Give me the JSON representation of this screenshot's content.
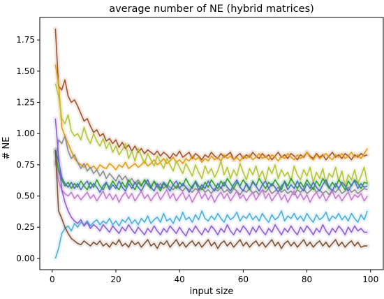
{
  "chart_data": {
    "type": "line",
    "title": "average number of NE (hybrid matrices)",
    "xlabel": "input size",
    "ylabel": "# NE",
    "xlim": [
      -3.9,
      104
    ],
    "ylim": [
      -0.09,
      1.93
    ],
    "xticks": [
      0,
      20,
      40,
      60,
      80,
      100
    ],
    "xtick_labels": [
      "0",
      "20",
      "40",
      "60",
      "80",
      "100"
    ],
    "yticks": [
      0.0,
      0.25,
      0.5,
      0.75,
      1.0,
      1.25,
      1.5,
      1.75
    ],
    "ytick_labels": [
      "0.00",
      "0.25",
      "0.50",
      "0.75",
      "1.00",
      "1.25",
      "1.50",
      "1.75"
    ],
    "grid": false,
    "legend": "none",
    "x_range": [
      1,
      99
    ],
    "series": [
      {
        "color": "#a0522d",
        "values": [
          1.84,
          1.38,
          1.35,
          1.43,
          1.3,
          1.25,
          1.27,
          1.22,
          1.16,
          1.1,
          1.12,
          1.06,
          1.01,
          1.03,
          0.98,
          1.0,
          0.94,
          0.96,
          0.92,
          0.95,
          0.89,
          0.93,
          0.88,
          0.91,
          0.86,
          0.9,
          0.85,
          0.88,
          0.84,
          0.87,
          0.85,
          0.83,
          0.86,
          0.82,
          0.85,
          0.83,
          0.8,
          0.84,
          0.82,
          0.86,
          0.81,
          0.83,
          0.85,
          0.8,
          0.84,
          0.82,
          0.79,
          0.83,
          0.81,
          0.85,
          0.82,
          0.8,
          0.84,
          0.81,
          0.83,
          0.85,
          0.79,
          0.82,
          0.84,
          0.8,
          0.83,
          0.81,
          0.85,
          0.82,
          0.8,
          0.84,
          0.81,
          0.83,
          0.79,
          0.82,
          0.85,
          0.81,
          0.83,
          0.8,
          0.84,
          0.82,
          0.79,
          0.83,
          0.81,
          0.85,
          0.82,
          0.8,
          0.84,
          0.81,
          0.83,
          0.79,
          0.82,
          0.85,
          0.81,
          0.83,
          0.8,
          0.84,
          0.82,
          0.79,
          0.83,
          0.81,
          0.84,
          0.82,
          0.83
        ]
      },
      {
        "color": "#e39b14",
        "values": [
          1.55,
          1.4,
          1.05,
          0.98,
          0.92,
          0.86,
          0.8,
          0.77,
          0.75,
          0.73,
          0.76,
          0.72,
          0.74,
          0.71,
          0.75,
          0.73,
          0.72,
          0.76,
          0.74,
          0.71,
          0.75,
          0.73,
          0.77,
          0.72,
          0.74,
          0.76,
          0.73,
          0.75,
          0.78,
          0.74,
          0.76,
          0.79,
          0.75,
          0.77,
          0.8,
          0.76,
          0.78,
          0.81,
          0.77,
          0.79,
          0.76,
          0.8,
          0.78,
          0.82,
          0.79,
          0.81,
          0.77,
          0.8,
          0.78,
          0.82,
          0.79,
          0.81,
          0.78,
          0.83,
          0.8,
          0.82,
          0.79,
          0.81,
          0.78,
          0.82,
          0.8,
          0.83,
          0.79,
          0.81,
          0.84,
          0.8,
          0.82,
          0.79,
          0.83,
          0.81,
          0.78,
          0.82,
          0.8,
          0.84,
          0.81,
          0.79,
          0.83,
          0.8,
          0.82,
          0.85,
          0.81,
          0.79,
          0.83,
          0.8,
          0.82,
          0.84,
          0.81,
          0.79,
          0.83,
          0.81,
          0.84,
          0.8,
          0.82,
          0.85,
          0.81,
          0.83,
          0.8,
          0.84,
          0.88
        ]
      },
      {
        "color": "#b5c23a",
        "values": [
          1.4,
          1.3,
          1.12,
          1.08,
          1.15,
          1.02,
          0.98,
          1.0,
          0.95,
          1.05,
          0.97,
          0.92,
          1.0,
          0.94,
          0.9,
          0.96,
          0.88,
          0.93,
          0.85,
          0.9,
          0.83,
          0.87,
          0.92,
          0.8,
          0.86,
          0.78,
          0.88,
          0.82,
          0.76,
          0.84,
          0.79,
          0.74,
          0.82,
          0.77,
          0.72,
          0.8,
          0.75,
          0.7,
          0.78,
          0.73,
          0.68,
          0.76,
          0.71,
          0.66,
          0.75,
          0.69,
          0.64,
          0.74,
          0.68,
          0.72,
          0.65,
          0.7,
          0.78,
          0.67,
          0.73,
          0.64,
          0.71,
          0.66,
          0.76,
          0.69,
          0.63,
          0.72,
          0.67,
          0.74,
          0.65,
          0.7,
          0.62,
          0.73,
          0.68,
          0.75,
          0.64,
          0.71,
          0.66,
          0.69,
          0.62,
          0.74,
          0.67,
          0.63,
          0.71,
          0.66,
          0.73,
          0.61,
          0.69,
          0.64,
          0.72,
          0.6,
          0.68,
          0.65,
          0.73,
          0.62,
          0.7,
          0.58,
          0.67,
          0.63,
          0.71,
          0.6,
          0.66,
          0.73,
          0.6
        ]
      },
      {
        "color": "#8b8b8b",
        "values": [
          0.75,
          0.95,
          0.92,
          0.98,
          0.86,
          0.8,
          0.83,
          0.77,
          0.72,
          0.76,
          0.7,
          0.73,
          0.68,
          0.71,
          0.66,
          0.7,
          0.64,
          0.68,
          0.65,
          0.62,
          0.67,
          0.63,
          0.66,
          0.61,
          0.64,
          0.6,
          0.63,
          0.59,
          0.62,
          0.6,
          0.58,
          0.61,
          0.57,
          0.6,
          0.56,
          0.59,
          0.57,
          0.55,
          0.58,
          0.56,
          0.54,
          0.57,
          0.55,
          0.53,
          0.56,
          0.54,
          0.57,
          0.53,
          0.55,
          0.52,
          0.56,
          0.54,
          0.57,
          0.53,
          0.55,
          0.52,
          0.56,
          0.54,
          0.51,
          0.55,
          0.53,
          0.56,
          0.52,
          0.54,
          0.51,
          0.55,
          0.53,
          0.56,
          0.52,
          0.54,
          0.57,
          0.53,
          0.55,
          0.52,
          0.54,
          0.51,
          0.55,
          0.53,
          0.56,
          0.52,
          0.54,
          0.57,
          0.53,
          0.55,
          0.52,
          0.54,
          0.51,
          0.55,
          0.53,
          0.56,
          0.52,
          0.54,
          0.57,
          0.53,
          0.55,
          0.52,
          0.54,
          0.56,
          0.55
        ]
      },
      {
        "color": "#2ca02c",
        "values": [
          0.85,
          0.7,
          0.63,
          0.58,
          0.61,
          0.56,
          0.6,
          0.57,
          0.62,
          0.58,
          0.55,
          0.61,
          0.57,
          0.63,
          0.58,
          0.55,
          0.6,
          0.57,
          0.62,
          0.58,
          0.55,
          0.61,
          0.57,
          0.63,
          0.59,
          0.55,
          0.61,
          0.58,
          0.63,
          0.59,
          0.56,
          0.62,
          0.58,
          0.54,
          0.6,
          0.57,
          0.63,
          0.59,
          0.56,
          0.61,
          0.58,
          0.64,
          0.59,
          0.56,
          0.62,
          0.58,
          0.55,
          0.61,
          0.57,
          0.63,
          0.59,
          0.56,
          0.62,
          0.58,
          0.64,
          0.6,
          0.56,
          0.61,
          0.58,
          0.63,
          0.59,
          0.55,
          0.62,
          0.58,
          0.64,
          0.6,
          0.56,
          0.61,
          0.58,
          0.63,
          0.59,
          0.55,
          0.62,
          0.58,
          0.64,
          0.6,
          0.56,
          0.61,
          0.57,
          0.63,
          0.59,
          0.55,
          0.62,
          0.58,
          0.64,
          0.6,
          0.56,
          0.61,
          0.57,
          0.63,
          0.59,
          0.55,
          0.62,
          0.58,
          0.63,
          0.6,
          0.56,
          0.61,
          0.6
        ]
      },
      {
        "color": "#4a6fc4",
        "values": [
          0.87,
          0.78,
          0.65,
          0.6,
          0.57,
          0.61,
          0.56,
          0.6,
          0.55,
          0.59,
          0.62,
          0.56,
          0.6,
          0.57,
          0.53,
          0.58,
          0.61,
          0.55,
          0.59,
          0.56,
          0.62,
          0.57,
          0.54,
          0.6,
          0.56,
          0.61,
          0.57,
          0.54,
          0.59,
          0.63,
          0.57,
          0.54,
          0.6,
          0.56,
          0.61,
          0.58,
          0.54,
          0.59,
          0.62,
          0.56,
          0.6,
          0.57,
          0.53,
          0.58,
          0.61,
          0.55,
          0.59,
          0.56,
          0.62,
          0.57,
          0.54,
          0.6,
          0.56,
          0.61,
          0.57,
          0.54,
          0.59,
          0.63,
          0.57,
          0.54,
          0.6,
          0.56,
          0.61,
          0.58,
          0.54,
          0.59,
          0.62,
          0.56,
          0.6,
          0.57,
          0.53,
          0.58,
          0.61,
          0.55,
          0.59,
          0.56,
          0.62,
          0.57,
          0.54,
          0.6,
          0.56,
          0.61,
          0.57,
          0.54,
          0.59,
          0.63,
          0.57,
          0.54,
          0.6,
          0.56,
          0.61,
          0.58,
          0.54,
          0.59,
          0.62,
          0.56,
          0.6,
          0.57,
          0.58
        ]
      },
      {
        "color": "#c27bd0",
        "values": [
          0.78,
          0.62,
          0.55,
          0.52,
          0.5,
          0.53,
          0.48,
          0.51,
          0.47,
          0.5,
          0.53,
          0.48,
          0.51,
          0.46,
          0.5,
          0.54,
          0.48,
          0.52,
          0.47,
          0.51,
          0.45,
          0.5,
          0.53,
          0.48,
          0.52,
          0.46,
          0.5,
          0.54,
          0.48,
          0.51,
          0.46,
          0.5,
          0.53,
          0.47,
          0.51,
          0.55,
          0.48,
          0.52,
          0.46,
          0.5,
          0.53,
          0.47,
          0.51,
          0.45,
          0.5,
          0.54,
          0.48,
          0.52,
          0.47,
          0.51,
          0.45,
          0.5,
          0.53,
          0.48,
          0.52,
          0.46,
          0.5,
          0.54,
          0.48,
          0.51,
          0.46,
          0.5,
          0.53,
          0.47,
          0.51,
          0.55,
          0.48,
          0.52,
          0.46,
          0.5,
          0.53,
          0.47,
          0.51,
          0.45,
          0.5,
          0.54,
          0.48,
          0.52,
          0.47,
          0.51,
          0.45,
          0.5,
          0.53,
          0.48,
          0.52,
          0.46,
          0.5,
          0.54,
          0.48,
          0.51,
          0.46,
          0.5,
          0.53,
          0.47,
          0.51,
          0.49,
          0.52,
          0.46,
          0.5
        ]
      },
      {
        "color": "#4aaedc",
        "values": [
          0.0,
          0.08,
          0.2,
          0.24,
          0.26,
          0.22,
          0.28,
          0.25,
          0.29,
          0.27,
          0.3,
          0.26,
          0.29,
          0.31,
          0.27,
          0.3,
          0.28,
          0.32,
          0.27,
          0.3,
          0.26,
          0.31,
          0.29,
          0.33,
          0.28,
          0.31,
          0.27,
          0.32,
          0.29,
          0.34,
          0.28,
          0.31,
          0.33,
          0.29,
          0.36,
          0.3,
          0.32,
          0.28,
          0.34,
          0.3,
          0.37,
          0.31,
          0.33,
          0.29,
          0.35,
          0.31,
          0.38,
          0.32,
          0.3,
          0.34,
          0.31,
          0.36,
          0.32,
          0.29,
          0.35,
          0.31,
          0.33,
          0.37,
          0.3,
          0.34,
          0.32,
          0.36,
          0.31,
          0.34,
          0.3,
          0.36,
          0.32,
          0.29,
          0.35,
          0.31,
          0.33,
          0.38,
          0.3,
          0.34,
          0.32,
          0.36,
          0.31,
          0.34,
          0.3,
          0.36,
          0.32,
          0.29,
          0.35,
          0.31,
          0.33,
          0.37,
          0.3,
          0.34,
          0.32,
          0.36,
          0.31,
          0.34,
          0.3,
          0.36,
          0.32,
          0.29,
          0.35,
          0.31,
          0.38
        ]
      },
      {
        "color": "#8b5fcf",
        "values": [
          1.12,
          0.82,
          0.55,
          0.45,
          0.38,
          0.33,
          0.3,
          0.28,
          0.31,
          0.26,
          0.29,
          0.24,
          0.27,
          0.25,
          0.22,
          0.27,
          0.24,
          0.21,
          0.26,
          0.23,
          0.2,
          0.25,
          0.22,
          0.27,
          0.23,
          0.2,
          0.25,
          0.22,
          0.19,
          0.24,
          0.21,
          0.26,
          0.22,
          0.19,
          0.24,
          0.21,
          0.26,
          0.23,
          0.2,
          0.25,
          0.21,
          0.18,
          0.24,
          0.21,
          0.26,
          0.22,
          0.19,
          0.24,
          0.21,
          0.26,
          0.23,
          0.19,
          0.24,
          0.21,
          0.27,
          0.22,
          0.19,
          0.24,
          0.21,
          0.26,
          0.23,
          0.19,
          0.25,
          0.21,
          0.26,
          0.22,
          0.19,
          0.24,
          0.21,
          0.27,
          0.23,
          0.19,
          0.24,
          0.21,
          0.26,
          0.22,
          0.19,
          0.25,
          0.21,
          0.26,
          0.23,
          0.19,
          0.24,
          0.21,
          0.27,
          0.22,
          0.19,
          0.24,
          0.21,
          0.26,
          0.23,
          0.19,
          0.25,
          0.21,
          0.26,
          0.22,
          0.24,
          0.21,
          0.21
        ]
      },
      {
        "color": "#7a5236",
        "values": [
          0.87,
          0.38,
          0.32,
          0.25,
          0.2,
          0.16,
          0.14,
          0.12,
          0.11,
          0.14,
          0.12,
          0.1,
          0.13,
          0.11,
          0.14,
          0.1,
          0.12,
          0.09,
          0.13,
          0.11,
          0.15,
          0.1,
          0.12,
          0.09,
          0.14,
          0.11,
          0.13,
          0.09,
          0.12,
          0.15,
          0.1,
          0.12,
          0.08,
          0.13,
          0.11,
          0.14,
          0.09,
          0.12,
          0.15,
          0.1,
          0.13,
          0.09,
          0.12,
          0.14,
          0.1,
          0.13,
          0.09,
          0.12,
          0.15,
          0.1,
          0.13,
          0.08,
          0.12,
          0.14,
          0.1,
          0.13,
          0.09,
          0.12,
          0.15,
          0.1,
          0.13,
          0.09,
          0.12,
          0.14,
          0.1,
          0.13,
          0.09,
          0.12,
          0.15,
          0.1,
          0.13,
          0.08,
          0.12,
          0.14,
          0.1,
          0.13,
          0.09,
          0.12,
          0.15,
          0.1,
          0.13,
          0.09,
          0.12,
          0.14,
          0.1,
          0.13,
          0.09,
          0.12,
          0.15,
          0.1,
          0.13,
          0.09,
          0.12,
          0.14,
          0.1,
          0.13,
          0.09,
          0.1,
          0.1
        ]
      }
    ]
  }
}
